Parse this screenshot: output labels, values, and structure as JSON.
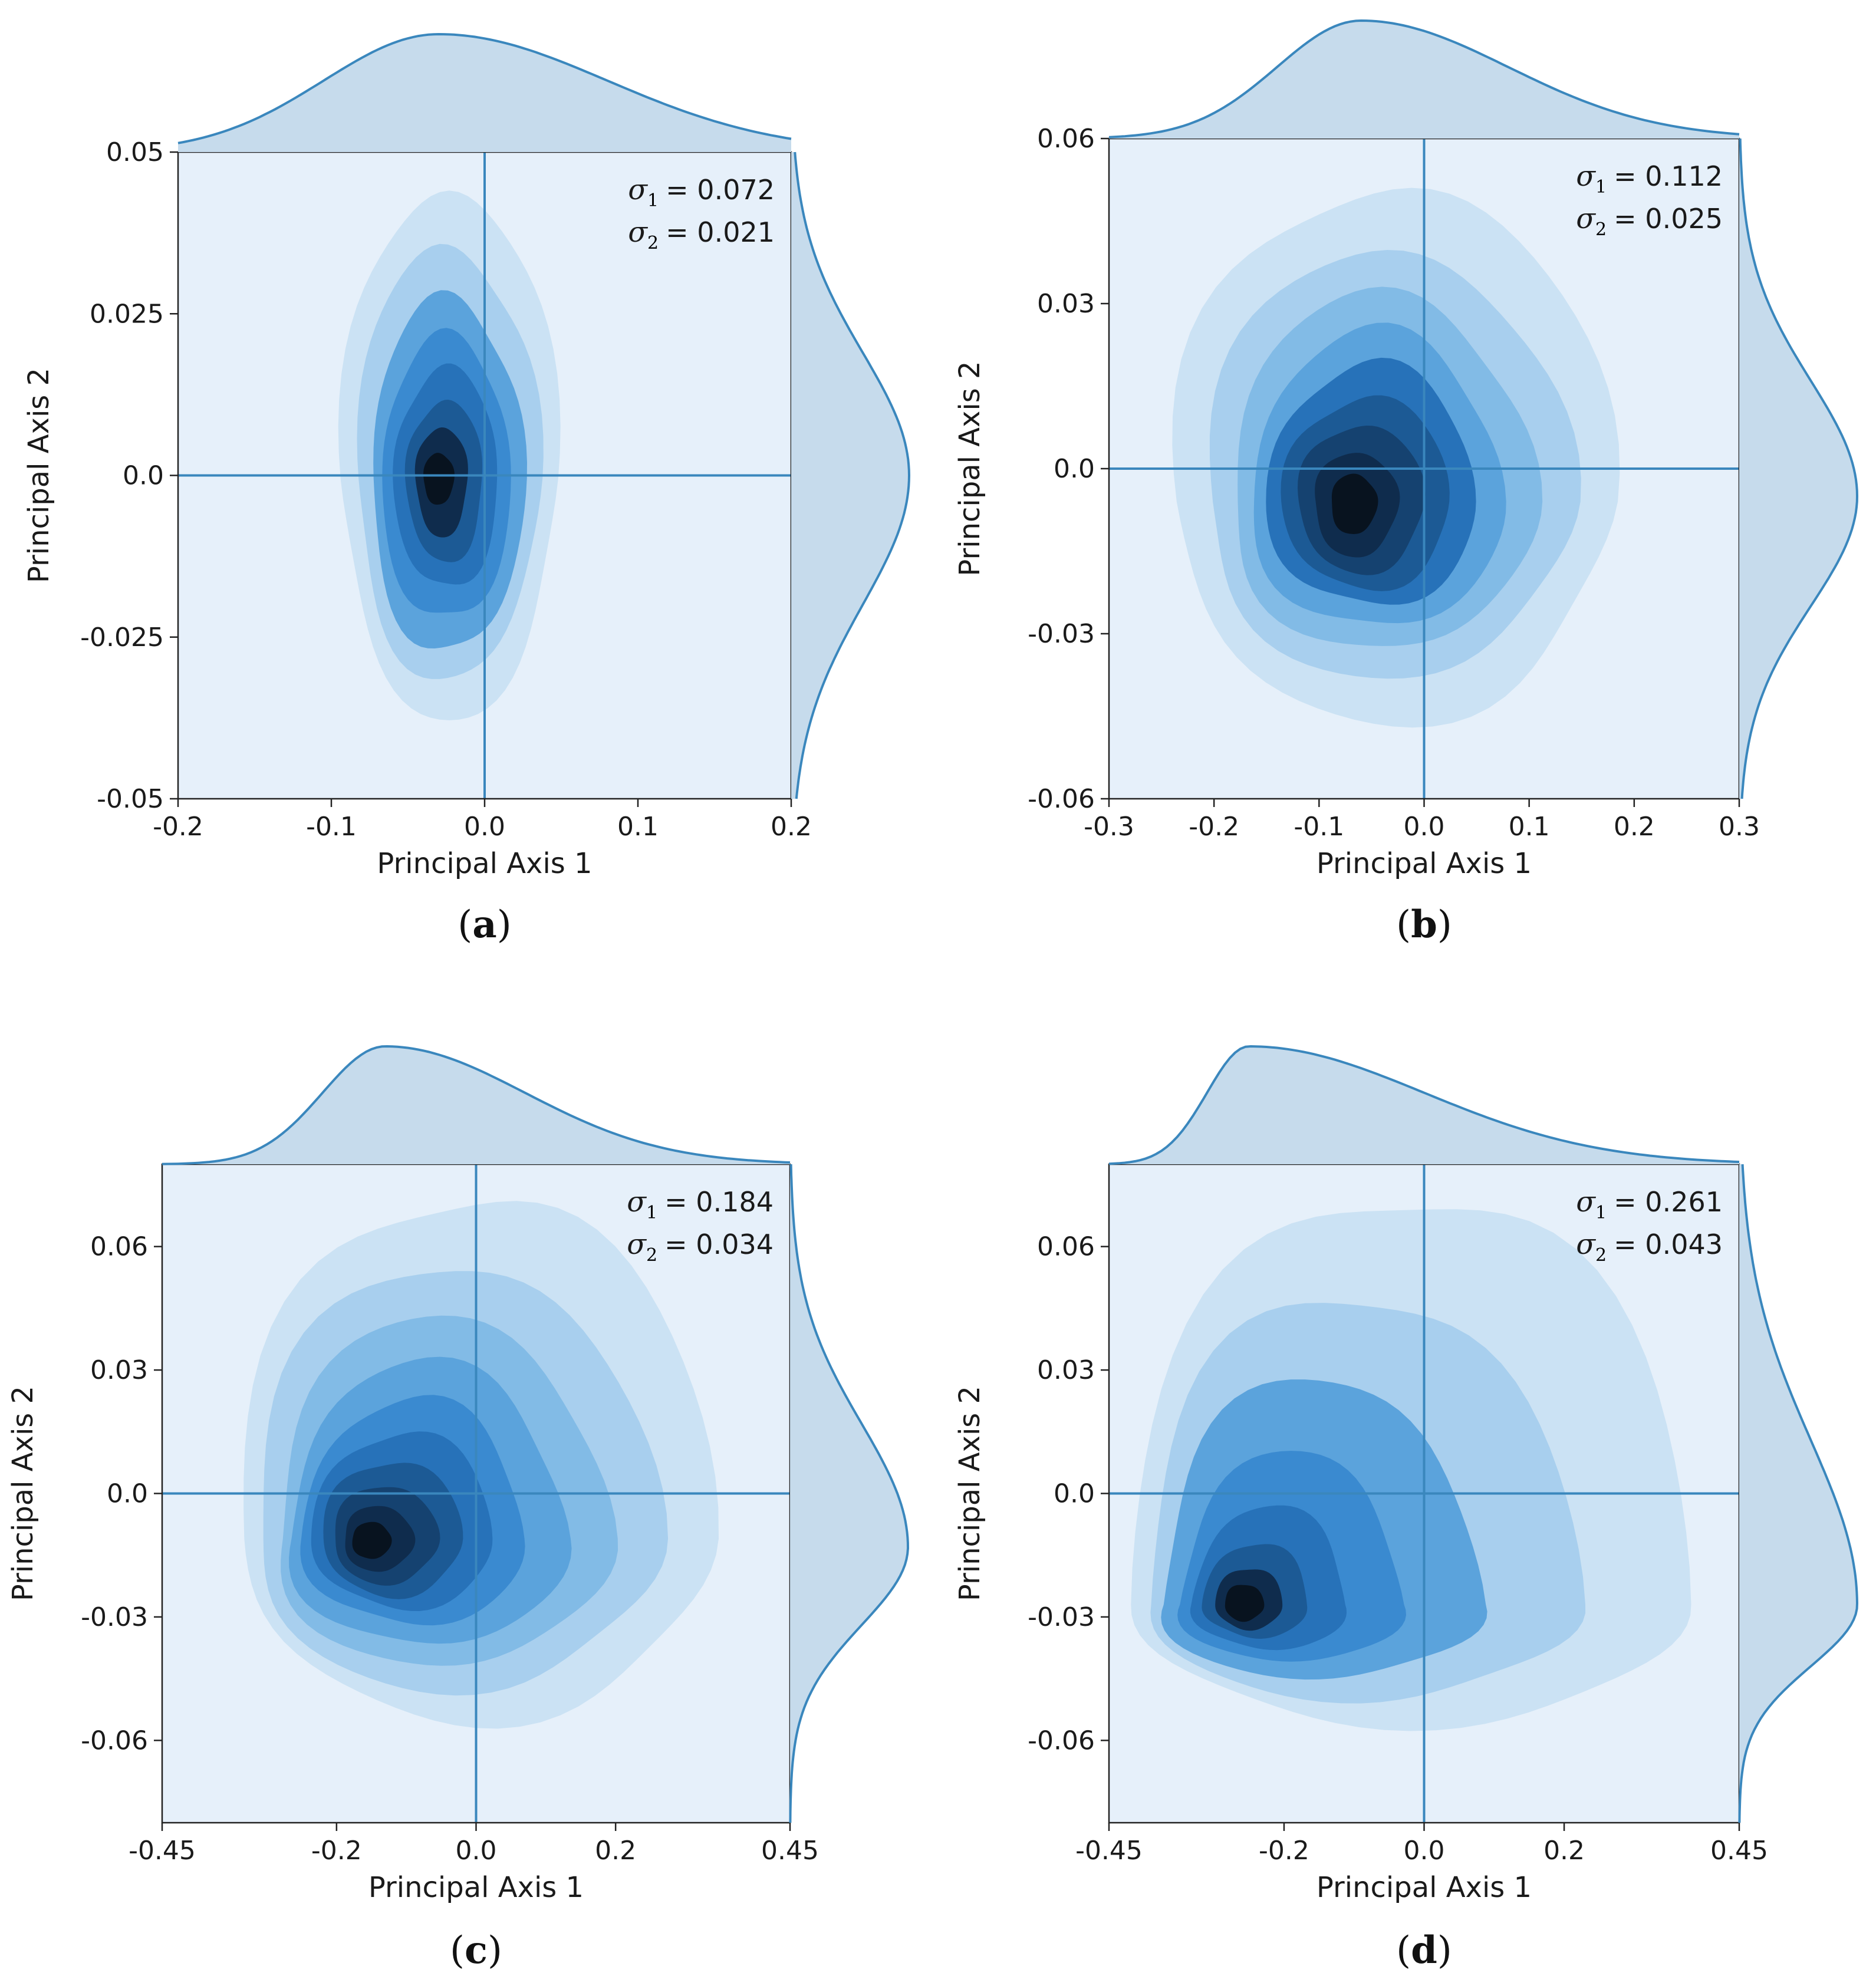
{
  "colors": {
    "page": "#ffffff",
    "plot_background": "#e6f0fa",
    "marginal_fill": "#c6dbec",
    "line": "#3a87bd",
    "frame": "#222222",
    "density_ramp": [
      "#cbe2f4",
      "#a8cfee",
      "#82bbe6",
      "#5ba3dc",
      "#3a8ad0",
      "#2772b9",
      "#1c5a95",
      "#154270",
      "#0f2c4d",
      "#08131f"
    ]
  },
  "chart_data": [
    {
      "type": "kde-contour-with-marginals",
      "panel_label": "a",
      "xlabel": "Principal Axis 1",
      "ylabel": "Principal Axis 2",
      "xlim": [
        -0.2,
        0.2
      ],
      "ylim": [
        -0.05,
        0.05
      ],
      "xticks": [
        -0.2,
        -0.1,
        0.0,
        0.1,
        0.2
      ],
      "xtick_labels": [
        "-0.2",
        "-0.1",
        "0.0",
        "0.1",
        "0.2"
      ],
      "yticks": [
        -0.05,
        -0.025,
        0.0,
        0.025,
        0.05
      ],
      "ytick_labels": [
        "-0.05",
        "-0.025",
        "0.0",
        "0.025",
        "0.05"
      ],
      "reference_lines": {
        "x": 0.0,
        "y": 0.0
      },
      "annotation": {
        "sigma1_label": "= 0.072",
        "sigma2_label": "= 0.021",
        "sigma_symbol": "σ",
        "sub1": "1",
        "sub2": "2"
      },
      "density": {
        "center": [
          -0.026,
          -0.0005
        ],
        "levels": [
          {
            "rx": 0.071,
            "ry_up": 0.045,
            "ry_down": 0.037,
            "cx_shift": 0.003,
            "cy_shift": 0.0
          },
          {
            "rx": 0.06,
            "ry_up": 0.036,
            "ry_down": 0.031,
            "cx_shift": 0.002,
            "cy_shift": 0.0
          },
          {
            "rx": 0.05,
            "ry_up": 0.028,
            "ry_down": 0.027,
            "cx_shift": 0.002,
            "cy_shift": 0.0
          },
          {
            "rx": 0.042,
            "ry_up": 0.022,
            "ry_down": 0.022,
            "cx_shift": 0.001,
            "cy_shift": 0.0
          },
          {
            "rx": 0.034,
            "ry_up": 0.017,
            "ry_down": 0.017,
            "cx_shift": 0.001,
            "cy_shift": 0.0
          },
          {
            "rx": 0.025,
            "ry_up": 0.012,
            "ry_down": 0.013,
            "cx_shift": 0.0,
            "cy_shift": 0.0
          },
          {
            "rx": 0.017,
            "ry_up": 0.008,
            "ry_down": 0.009,
            "cx_shift": -0.002,
            "cy_shift": 0.0
          },
          {
            "rx": 0.01,
            "ry_up": 0.004,
            "ry_down": 0.004,
            "cx_shift": -0.004,
            "cy_shift": 0.0
          }
        ]
      },
      "marginal_x": {
        "peak": -0.03,
        "sd_left": 0.075,
        "sd_right": 0.11
      },
      "marginal_y": {
        "peak": 0.0,
        "sd_down": 0.02,
        "sd_up": 0.019
      }
    },
    {
      "type": "kde-contour-with-marginals",
      "panel_label": "b",
      "xlabel": "Principal Axis 1",
      "ylabel": "Principal Axis 2",
      "xlim": [
        -0.3,
        0.3
      ],
      "ylim": [
        -0.06,
        0.06
      ],
      "xticks": [
        -0.3,
        -0.2,
        -0.1,
        0.0,
        0.1,
        0.2,
        0.3
      ],
      "xtick_labels": [
        "-0.3",
        "-0.2",
        "-0.1",
        "0.0",
        "0.1",
        "0.2",
        "0.3"
      ],
      "yticks": [
        -0.06,
        -0.03,
        0.0,
        0.03,
        0.06
      ],
      "ytick_labels": [
        "-0.06",
        "-0.03",
        "0.0",
        "0.03",
        "0.06"
      ],
      "reference_lines": {
        "x": 0.0,
        "y": 0.0
      },
      "annotation": {
        "sigma1_label": "= 0.112",
        "sigma2_label": "= 0.025",
        "sigma_symbol": "σ",
        "sub1": "1",
        "sub2": "2"
      },
      "density": {
        "center": [
          -0.065,
          -0.006
        ],
        "levels": [
          {
            "rx": 0.21,
            "ry_up": 0.058,
            "ry_down": 0.04,
            "cx_shift": 0.035,
            "cy_shift": 0.0
          },
          {
            "rx": 0.175,
            "ry_up": 0.046,
            "ry_down": 0.032,
            "cx_shift": 0.03,
            "cy_shift": 0.0
          },
          {
            "rx": 0.145,
            "ry_up": 0.038,
            "ry_down": 0.027,
            "cx_shift": 0.025,
            "cy_shift": 0.0
          },
          {
            "rx": 0.12,
            "ry_up": 0.031,
            "ry_down": 0.023,
            "cx_shift": 0.02,
            "cy_shift": 0.0
          },
          {
            "rx": 0.1,
            "ry_up": 0.025,
            "ry_down": 0.019,
            "cx_shift": 0.015,
            "cy_shift": 0.0
          },
          {
            "rx": 0.08,
            "ry_up": 0.019,
            "ry_down": 0.016,
            "cx_shift": 0.01,
            "cy_shift": 0.0
          },
          {
            "rx": 0.06,
            "ry_up": 0.014,
            "ry_down": 0.013,
            "cx_shift": 0.005,
            "cy_shift": 0.0
          },
          {
            "rx": 0.04,
            "ry_up": 0.009,
            "ry_down": 0.01,
            "cx_shift": 0.0,
            "cy_shift": 0.0
          },
          {
            "rx": 0.022,
            "ry_up": 0.005,
            "ry_down": 0.006,
            "cx_shift": -0.002,
            "cy_shift": 0.0
          }
        ]
      },
      "marginal_x": {
        "peak": -0.06,
        "sd_left": 0.08,
        "sd_right": 0.14
      },
      "marginal_y": {
        "peak": -0.005,
        "sd_down": 0.02,
        "sd_up": 0.021
      }
    },
    {
      "type": "kde-contour-with-marginals",
      "panel_label": "c",
      "xlabel": "Principal Axis 1",
      "ylabel": "Principal Axis 2",
      "xlim": [
        -0.45,
        0.45
      ],
      "ylim": [
        -0.08,
        0.08
      ],
      "xticks": [
        -0.45,
        -0.2,
        0.0,
        0.2,
        0.45
      ],
      "xtick_labels": [
        "-0.45",
        "-0.2",
        "0.0",
        "0.2",
        "0.45"
      ],
      "yticks": [
        -0.06,
        -0.03,
        0.0,
        0.03,
        0.06
      ],
      "ytick_labels": [
        "-0.06",
        "-0.03",
        "0.0",
        "0.03",
        "0.06"
      ],
      "reference_lines": {
        "x": 0.0,
        "y": 0.0
      },
      "annotation": {
        "sigma1_label": "= 0.184",
        "sigma2_label": "= 0.034",
        "sigma_symbol": "σ",
        "sub1": "1",
        "sub2": "2"
      },
      "density": {
        "center": [
          -0.15,
          -0.011
        ],
        "levels": [
          {
            "rx": 0.34,
            "ry_up": 0.085,
            "ry_down": 0.044,
            "cx_shift": 0.15,
            "cy_shift": 0.0
          },
          {
            "rx": 0.29,
            "ry_up": 0.067,
            "ry_down": 0.037,
            "cx_shift": 0.12,
            "cy_shift": 0.0
          },
          {
            "rx": 0.24,
            "ry_up": 0.054,
            "ry_down": 0.031,
            "cx_shift": 0.1,
            "cy_shift": 0.0
          },
          {
            "rx": 0.2,
            "ry_up": 0.043,
            "ry_down": 0.026,
            "cx_shift": 0.08,
            "cy_shift": 0.0
          },
          {
            "rx": 0.16,
            "ry_up": 0.034,
            "ry_down": 0.021,
            "cx_shift": 0.06,
            "cy_shift": 0.0
          },
          {
            "rx": 0.13,
            "ry_up": 0.026,
            "ry_down": 0.017,
            "cx_shift": 0.045,
            "cy_shift": 0.0
          },
          {
            "rx": 0.1,
            "ry_up": 0.019,
            "ry_down": 0.014,
            "cx_shift": 0.03,
            "cy_shift": 0.0
          },
          {
            "rx": 0.075,
            "ry_up": 0.013,
            "ry_down": 0.011,
            "cx_shift": 0.02,
            "cy_shift": 0.0
          },
          {
            "rx": 0.05,
            "ry_up": 0.008,
            "ry_down": 0.008,
            "cx_shift": 0.01,
            "cy_shift": 0.0
          },
          {
            "rx": 0.028,
            "ry_up": 0.004,
            "ry_down": 0.005,
            "cx_shift": 0.0,
            "cy_shift": 0.0
          }
        ]
      },
      "marginal_x": {
        "peak": -0.13,
        "sd_left": 0.09,
        "sd_right": 0.2
      },
      "marginal_y": {
        "peak": -0.013,
        "sd_down": 0.019,
        "sd_up": 0.03
      }
    },
    {
      "type": "kde-contour-with-marginals",
      "panel_label": "d",
      "xlabel": "Principal Axis 1",
      "ylabel": "Principal Axis 2",
      "xlim": [
        -0.45,
        0.45
      ],
      "ylim": [
        -0.08,
        0.08
      ],
      "xticks": [
        -0.45,
        -0.2,
        0.0,
        0.2,
        0.45
      ],
      "xtick_labels": [
        "-0.45",
        "-0.2",
        "0.0",
        "0.2",
        "0.45"
      ],
      "yticks": [
        -0.06,
        -0.03,
        0.0,
        0.03,
        0.06
      ],
      "ytick_labels": [
        "-0.06",
        "-0.03",
        "0.0",
        "0.03",
        "0.06"
      ],
      "reference_lines": {
        "x": 0.0,
        "y": 0.0
      },
      "annotation": {
        "sigma1_label": "= 0.261",
        "sigma2_label": "= 0.043",
        "sigma_symbol": "σ",
        "sub1": "1",
        "sub2": "2"
      },
      "density": {
        "center": [
          -0.26,
          -0.027
        ],
        "levels": [
          {
            "rx": 0.4,
            "ry_up": 0.102,
            "ry_down": 0.029,
            "cx_shift": 0.24,
            "cy_shift": 0.0
          },
          {
            "rx": 0.31,
            "ry_up": 0.076,
            "ry_down": 0.023,
            "cx_shift": 0.17,
            "cy_shift": 0.0
          },
          {
            "rx": 0.23,
            "ry_up": 0.055,
            "ry_down": 0.018,
            "cx_shift": 0.11,
            "cy_shift": 0.0
          },
          {
            "rx": 0.16,
            "ry_up": 0.037,
            "ry_down": 0.014,
            "cx_shift": 0.07,
            "cy_shift": 0.0
          },
          {
            "rx": 0.11,
            "ry_up": 0.024,
            "ry_down": 0.011,
            "cx_shift": 0.04,
            "cy_shift": 0.0
          },
          {
            "rx": 0.075,
            "ry_up": 0.015,
            "ry_down": 0.008,
            "cx_shift": 0.02,
            "cy_shift": 0.0
          },
          {
            "rx": 0.048,
            "ry_up": 0.009,
            "ry_down": 0.006,
            "cx_shift": 0.01,
            "cy_shift": 0.0
          },
          {
            "rx": 0.028,
            "ry_up": 0.005,
            "ry_down": 0.004,
            "cx_shift": 0.003,
            "cy_shift": 0.0
          }
        ]
      },
      "marginal_x": {
        "peak": -0.25,
        "sd_left": 0.06,
        "sd_right": 0.25
      },
      "marginal_y": {
        "peak": -0.027,
        "sd_down": 0.015,
        "sd_up": 0.04
      }
    }
  ]
}
